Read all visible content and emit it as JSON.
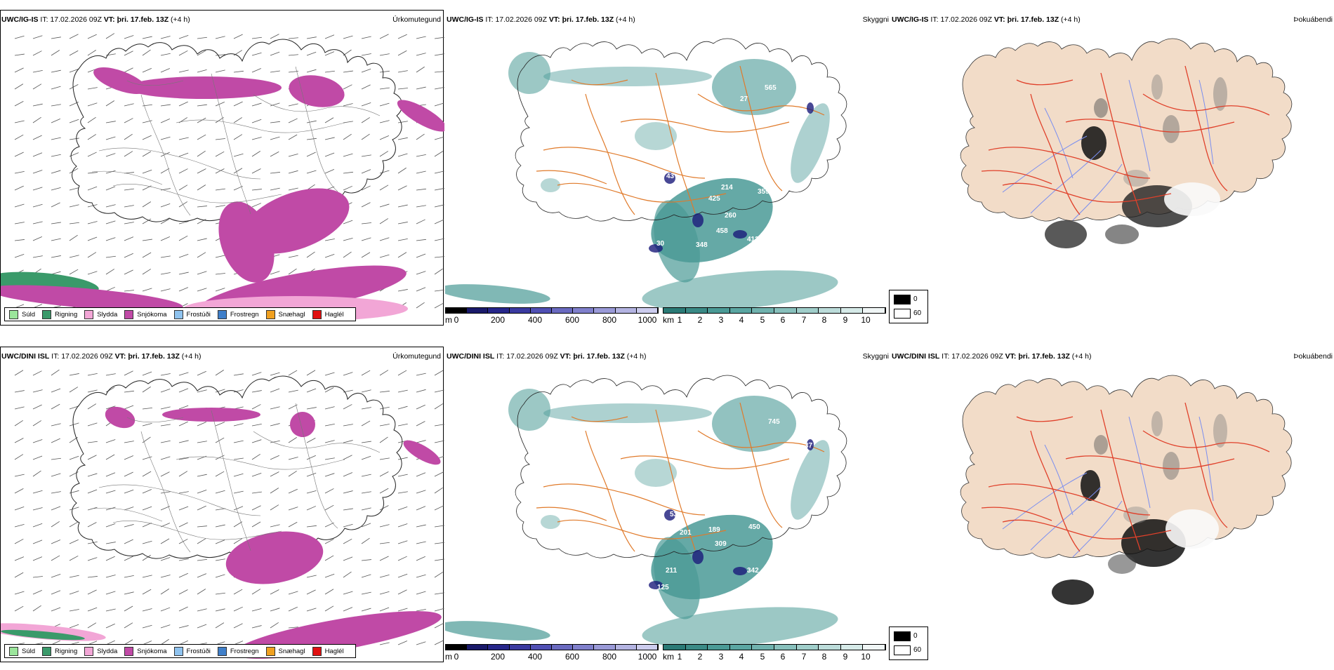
{
  "rows": [
    {
      "model": "UWC/IG-IS",
      "it_label": "IT:",
      "it_value": "17.02.2026 09Z",
      "vt_label": "VT:",
      "vt_value": "þri. 17.feb. 13Z",
      "lead": "(+4 h)",
      "labels_visibility": [
        "565",
        "214",
        "359",
        "425",
        "260",
        "458",
        "412",
        "348",
        "30",
        "27",
        "43"
      ]
    },
    {
      "model": "UWC/DINI ISL",
      "it_label": "IT:",
      "it_value": "17.02.2026 09Z",
      "vt_label": "VT:",
      "vt_value": "þri. 17.feb. 13Z",
      "lead": "(+4 h)",
      "labels_visibility": [
        "745",
        "189",
        "450",
        "309",
        "211",
        "125",
        "342",
        "37",
        "53",
        "201"
      ]
    }
  ],
  "panel_titles": [
    "Úrkomutegund",
    "Skyggni",
    "Þokuábendi"
  ],
  "precip_legend": [
    {
      "label": "Súld",
      "color": "#9be59b"
    },
    {
      "label": "Rigning",
      "color": "#3a9a6a"
    },
    {
      "label": "Slydda",
      "color": "#f2a6d6"
    },
    {
      "label": "Snjókoma",
      "color": "#c04aa6"
    },
    {
      "label": "Frostúði",
      "color": "#8fc3ef"
    },
    {
      "label": "Frostregn",
      "color": "#3f7fc9"
    },
    {
      "label": "Snæhagl",
      "color": "#f0a020"
    },
    {
      "label": "Haglél",
      "color": "#e01010"
    }
  ],
  "cloud_base_bar": {
    "unit": "m",
    "ticks": [
      "0",
      "200",
      "400",
      "600",
      "800",
      "1000"
    ]
  },
  "visibility_bar": {
    "unit": "km",
    "ticks": [
      "1",
      "2",
      "3",
      "4",
      "5",
      "6",
      "7",
      "8",
      "9",
      "10"
    ]
  },
  "fog_legend": {
    "black_value": "0",
    "white_value": "60"
  },
  "colors": {
    "snow": "#c04aa6",
    "rain": "#3a9a6a",
    "sleet": "#f2a6d6",
    "teal": "#4a9a96",
    "road": "#e07a2a",
    "land": "#f2dcc8",
    "river": "#7a8ef0",
    "red_road": "#e0402a",
    "navy": "#1a1a7a"
  }
}
